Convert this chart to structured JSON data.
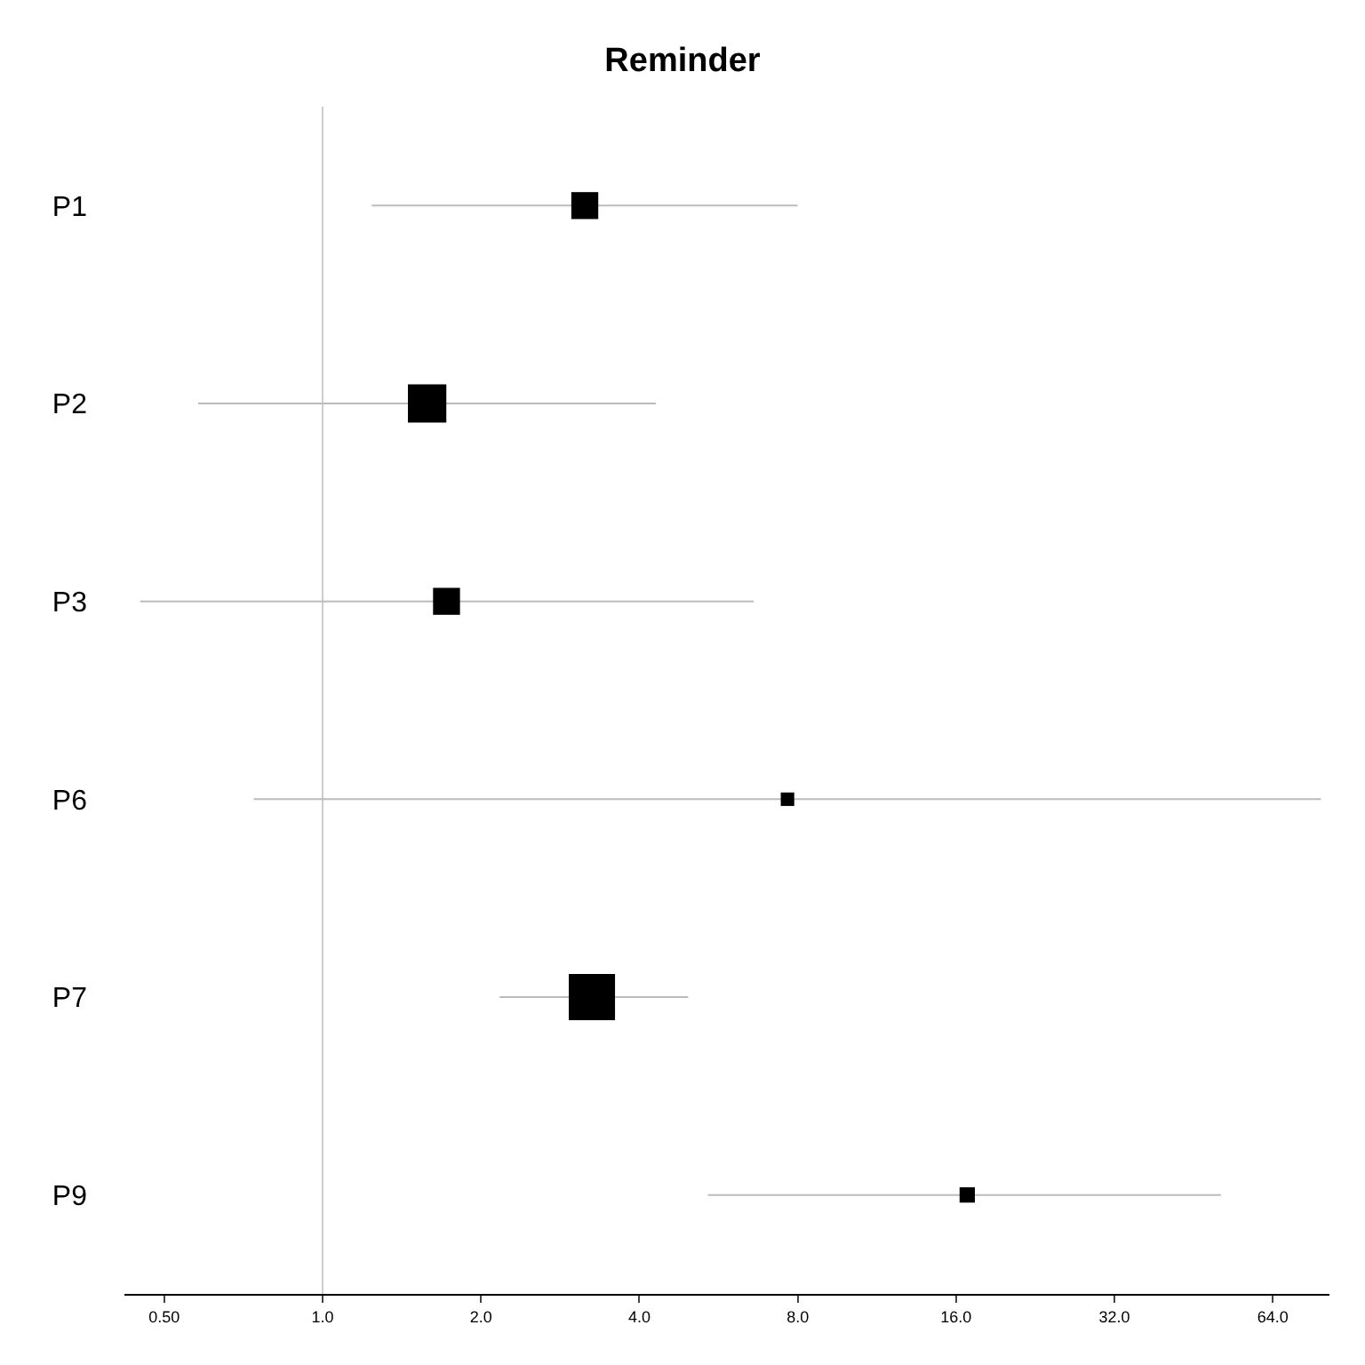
{
  "chart_data": {
    "type": "bubble",
    "title": "Reminder",
    "orientation": "horizontal",
    "categories": [
      "P1",
      "P2",
      "P3",
      "P6",
      "P7",
      "P9"
    ],
    "values": [
      3.15,
      1.58,
      1.72,
      7.65,
      3.25,
      16.8
    ],
    "errors": [
      [
        1.24,
        8.0
      ],
      [
        0.58,
        4.3
      ],
      [
        0.45,
        6.6
      ],
      [
        0.74,
        79
      ],
      [
        2.17,
        4.95
      ],
      [
        5.4,
        51
      ]
    ],
    "sizes": [
      0.34,
      0.69,
      0.34,
      0.085,
      1,
      0.11
    ],
    "color": "#000000",
    "log": "x",
    "xlim": [
      0.42,
      82
    ],
    "xticks": [
      {
        "value": 0.5,
        "label": "0.50"
      },
      {
        "value": 1,
        "label": "1.0"
      },
      {
        "value": 2,
        "label": "2.0"
      },
      {
        "value": 4,
        "label": "4.0"
      },
      {
        "value": 8,
        "label": "8.0"
      },
      {
        "value": 16,
        "label": "16.0"
      },
      {
        "value": 32,
        "label": "32.0"
      },
      {
        "value": 64,
        "label": "64.0"
      }
    ],
    "ref_lines": [
      {
        "axis": "x",
        "value": 1,
        "color": "#cccccc"
      }
    ],
    "marker": "square",
    "grid": false
  }
}
